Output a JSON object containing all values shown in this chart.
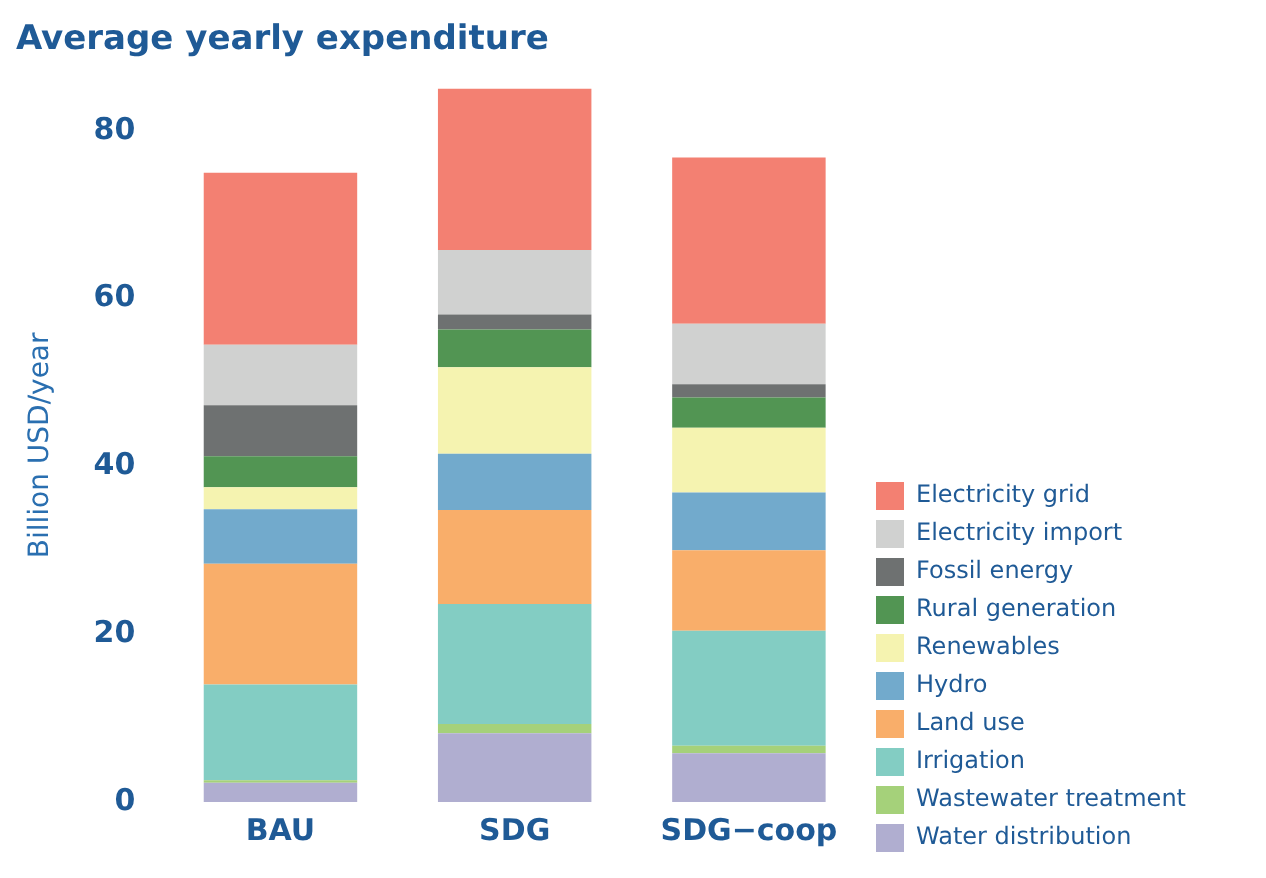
{
  "chart_data": {
    "type": "bar",
    "title": "Average yearly expenditure",
    "ylabel": "Billion USD/year",
    "categories": [
      "BAU",
      "SDG",
      "SDG−coop"
    ],
    "stacked": true,
    "legend": "right",
    "grid": false,
    "ylim": [
      0,
      85
    ],
    "yticks": [
      0,
      20,
      40,
      60,
      80
    ],
    "series": [
      {
        "name": "Water distribution",
        "color": "#b0aed0",
        "values": [
          2.3,
          8.2,
          5.8
        ]
      },
      {
        "name": "Wastewater treatment",
        "color": "#a5d17a",
        "values": [
          0.3,
          1.1,
          0.9
        ]
      },
      {
        "name": "Irrigation",
        "color": "#83cdc3",
        "values": [
          11.4,
          14.3,
          13.7
        ]
      },
      {
        "name": "Land use",
        "color": "#f9ae6a",
        "values": [
          14.4,
          11.2,
          9.6
        ]
      },
      {
        "name": "Hydro",
        "color": "#72aacc",
        "values": [
          6.5,
          6.7,
          6.9
        ]
      },
      {
        "name": "Renewables",
        "color": "#f5f3b0",
        "values": [
          2.6,
          10.3,
          7.7
        ]
      },
      {
        "name": "Rural generation",
        "color": "#529553",
        "values": [
          3.7,
          4.5,
          3.6
        ]
      },
      {
        "name": "Fossil energy",
        "color": "#6e7171",
        "values": [
          6.1,
          1.8,
          1.6
        ]
      },
      {
        "name": "Electricity import",
        "color": "#d0d1d0",
        "values": [
          7.2,
          7.7,
          7.2
        ]
      },
      {
        "name": "Electricity grid",
        "color": "#f38072",
        "values": [
          20.5,
          19.3,
          19.8
        ]
      }
    ]
  }
}
